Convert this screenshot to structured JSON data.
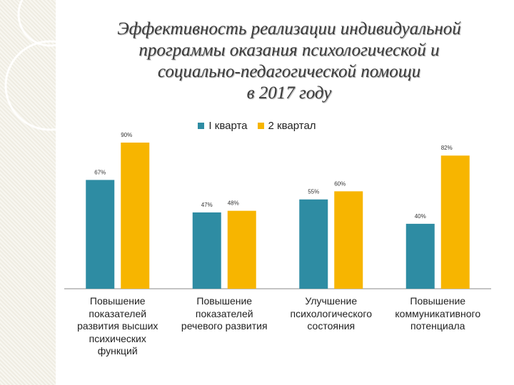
{
  "colors": {
    "series1": "#2e8ca3",
    "series2": "#f7b500",
    "axis": "#888888",
    "background_stripe": "#efece2"
  },
  "title_lines": [
    "Эффективность реализации индивидуальной",
    "программы оказания психологической и",
    "социально-педагогической помощи",
    "в 2017 году"
  ],
  "chart_data": {
    "type": "bar",
    "title": "Эффективность реализации индивидуальной программы оказания психологической и социально-педагогической помощи в 2017 году",
    "categories": [
      "Повышение показателей развития высших психических функций",
      "Повышение показателей речевого развития",
      "Улучшение психологического состояния",
      "Повышение коммуникативного потенциала"
    ],
    "category_lines": [
      [
        "Повышение",
        "показателей",
        "развития высших",
        "психических",
        "функций"
      ],
      [
        "Повышение",
        "показателей",
        "речевого развития"
      ],
      [
        "Улучшение",
        "психологического",
        "состояния"
      ],
      [
        "Повышение",
        "коммуникативного",
        "потенциала"
      ]
    ],
    "series": [
      {
        "name": "I кварта",
        "values": [
          67,
          47,
          55,
          40
        ],
        "labels": [
          "67%",
          "47%",
          "55%",
          "40%"
        ]
      },
      {
        "name": "2 квартал",
        "values": [
          90,
          48,
          60,
          82
        ],
        "labels": [
          "90%",
          "48%",
          "60%",
          "82%"
        ]
      }
    ],
    "ylim": [
      0,
      100
    ],
    "legend_position": "top",
    "grid": false
  }
}
